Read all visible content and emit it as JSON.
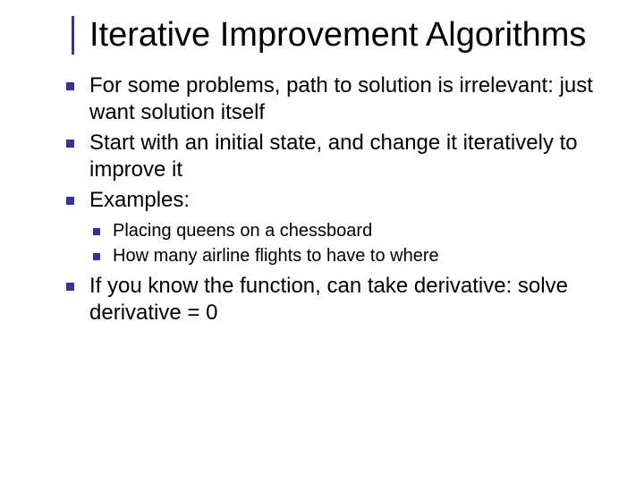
{
  "colors": {
    "accent": "#333399",
    "text": "#000000",
    "background": "#ffffff"
  },
  "typography": {
    "title_fontsize": 38,
    "body_fontsize": 24,
    "sub_fontsize": 20,
    "font_family": "Verdana"
  },
  "slide": {
    "title": "Iterative Improvement Algorithms",
    "bullets": [
      {
        "text": "For some problems, path to solution is irrelevant: just want solution itself"
      },
      {
        "text": "Start with an initial state, and change it iteratively to improve it"
      },
      {
        "text": "Examples:"
      }
    ],
    "sub_bullets": [
      {
        "text": "Placing queens on a chessboard"
      },
      {
        "text": "How many airline flights to have to where"
      }
    ],
    "bullets_after": [
      {
        "text": "If you know the function, can take derivative: solve derivative = 0"
      }
    ]
  }
}
